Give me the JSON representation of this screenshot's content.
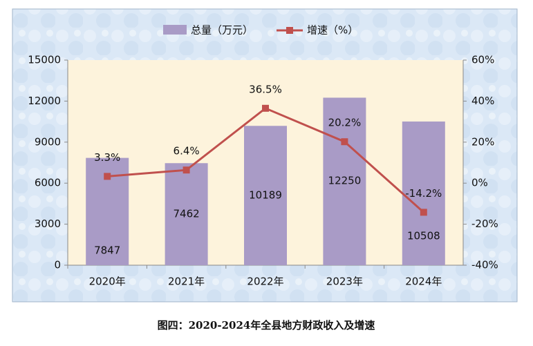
{
  "chart_data": {
    "type": "bar_line",
    "categories": [
      "2020年",
      "2021年",
      "2022年",
      "2023年",
      "2024年"
    ],
    "series": [
      {
        "name": "总量（万元）",
        "color": "#a99bc6",
        "values": [
          7847,
          7462,
          10189,
          12250,
          10508
        ]
      },
      {
        "name": "增速（%）",
        "color": "#c0504d",
        "axis": "y2",
        "values": [
          3.3,
          6.4,
          36.5,
          20.2,
          -14.2
        ],
        "value_labels": [
          "3.3%",
          "6.4%",
          "36.5%",
          "20.2%",
          "-14.2%"
        ]
      }
    ],
    "ylim": [
      0,
      15000
    ],
    "yticks": [
      0,
      3000,
      6000,
      9000,
      12000,
      15000
    ],
    "y2lim": [
      -40,
      60
    ],
    "y2ticks": [
      {
        "value": -40,
        "label": "-40%"
      },
      {
        "value": -20,
        "label": "-20%"
      },
      {
        "value": 0,
        "label": "0%"
      },
      {
        "value": 20,
        "label": "20%"
      },
      {
        "value": 40,
        "label": "40%"
      },
      {
        "value": 60,
        "label": "60%"
      }
    ],
    "legend": "top",
    "caption": "图四：2020-2024年全县地方财政收入及增速"
  }
}
